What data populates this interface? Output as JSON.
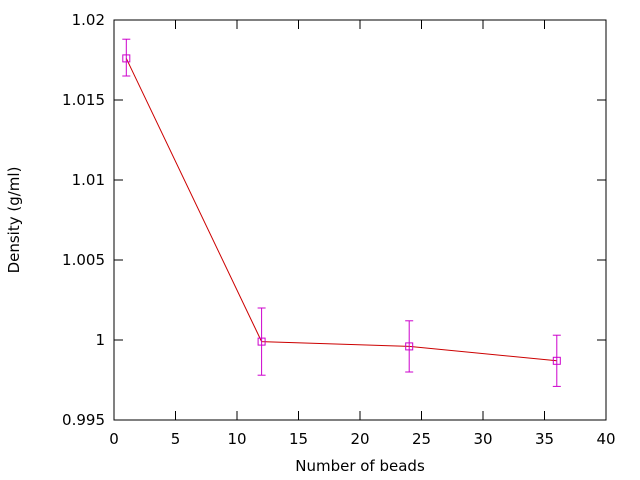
{
  "chart_data": {
    "type": "line",
    "xlabel": "Number of beads",
    "ylabel": "Density (g/ml)",
    "xlim": [
      0,
      40
    ],
    "ylim": [
      0.995,
      1.02
    ],
    "x_ticks": [
      0,
      5,
      10,
      15,
      20,
      25,
      30,
      35,
      40
    ],
    "x_tick_labels": [
      "0",
      "5",
      "10",
      "15",
      "20",
      "25",
      "30",
      "35",
      "40"
    ],
    "y_ticks": [
      0.995,
      1.0,
      1.005,
      1.01,
      1.015,
      1.02
    ],
    "y_tick_labels": [
      "0.995",
      "1",
      "1.005",
      "1.01",
      "1.015",
      "1.02"
    ],
    "grid": false,
    "series": [
      {
        "x": [
          1,
          12,
          24,
          36
        ],
        "y": [
          1.0176,
          0.9999,
          0.9996,
          0.9987
        ],
        "yerr_low": [
          1.0165,
          0.9978,
          0.998,
          0.9971
        ],
        "yerr_high": [
          1.0188,
          1.002,
          1.0012,
          1.0003
        ],
        "line_color": "#cc0000",
        "marker_color": "#cc00cc",
        "marker": "square"
      }
    ]
  }
}
